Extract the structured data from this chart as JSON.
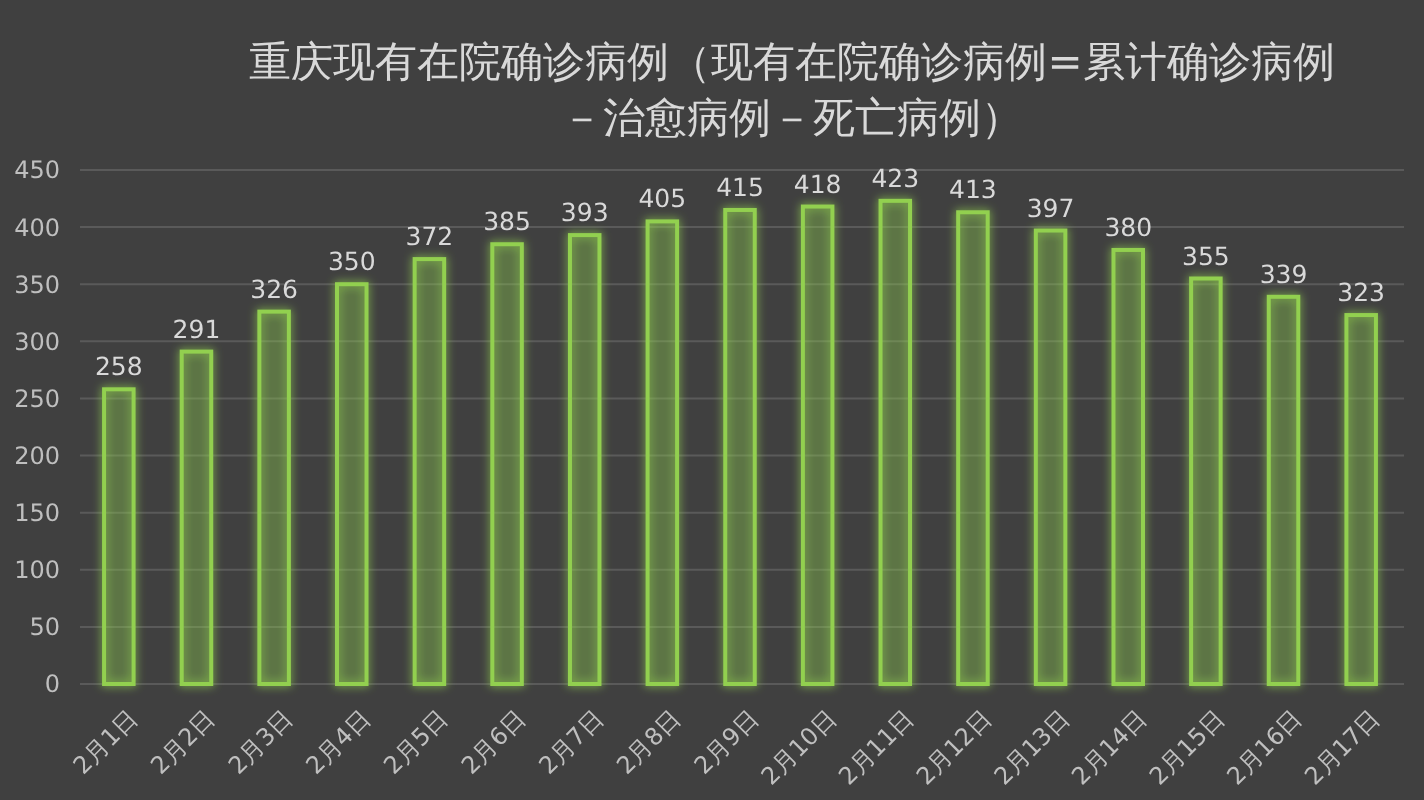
{
  "chart_data": {
    "type": "bar",
    "title": "重庆现有在院确诊病例（现有在院确诊病例=累计确诊病例－治愈病例－死亡病例）",
    "categories": [
      "2月1日",
      "2月2日",
      "2月3日",
      "2月4日",
      "2月5日",
      "2月6日",
      "2月7日",
      "2月8日",
      "2月9日",
      "2月10日",
      "2月11日",
      "2月12日",
      "2月13日",
      "2月14日",
      "2月15日",
      "2月16日",
      "2月17日"
    ],
    "values": [
      258,
      291,
      326,
      350,
      372,
      385,
      393,
      405,
      415,
      418,
      423,
      413,
      397,
      380,
      355,
      339,
      323
    ],
    "color": "#92d050",
    "ylim": [
      0,
      450
    ],
    "yticks": [
      0,
      50,
      100,
      150,
      200,
      250,
      300,
      350,
      400,
      450
    ],
    "grid": "y",
    "data_labels": true
  }
}
